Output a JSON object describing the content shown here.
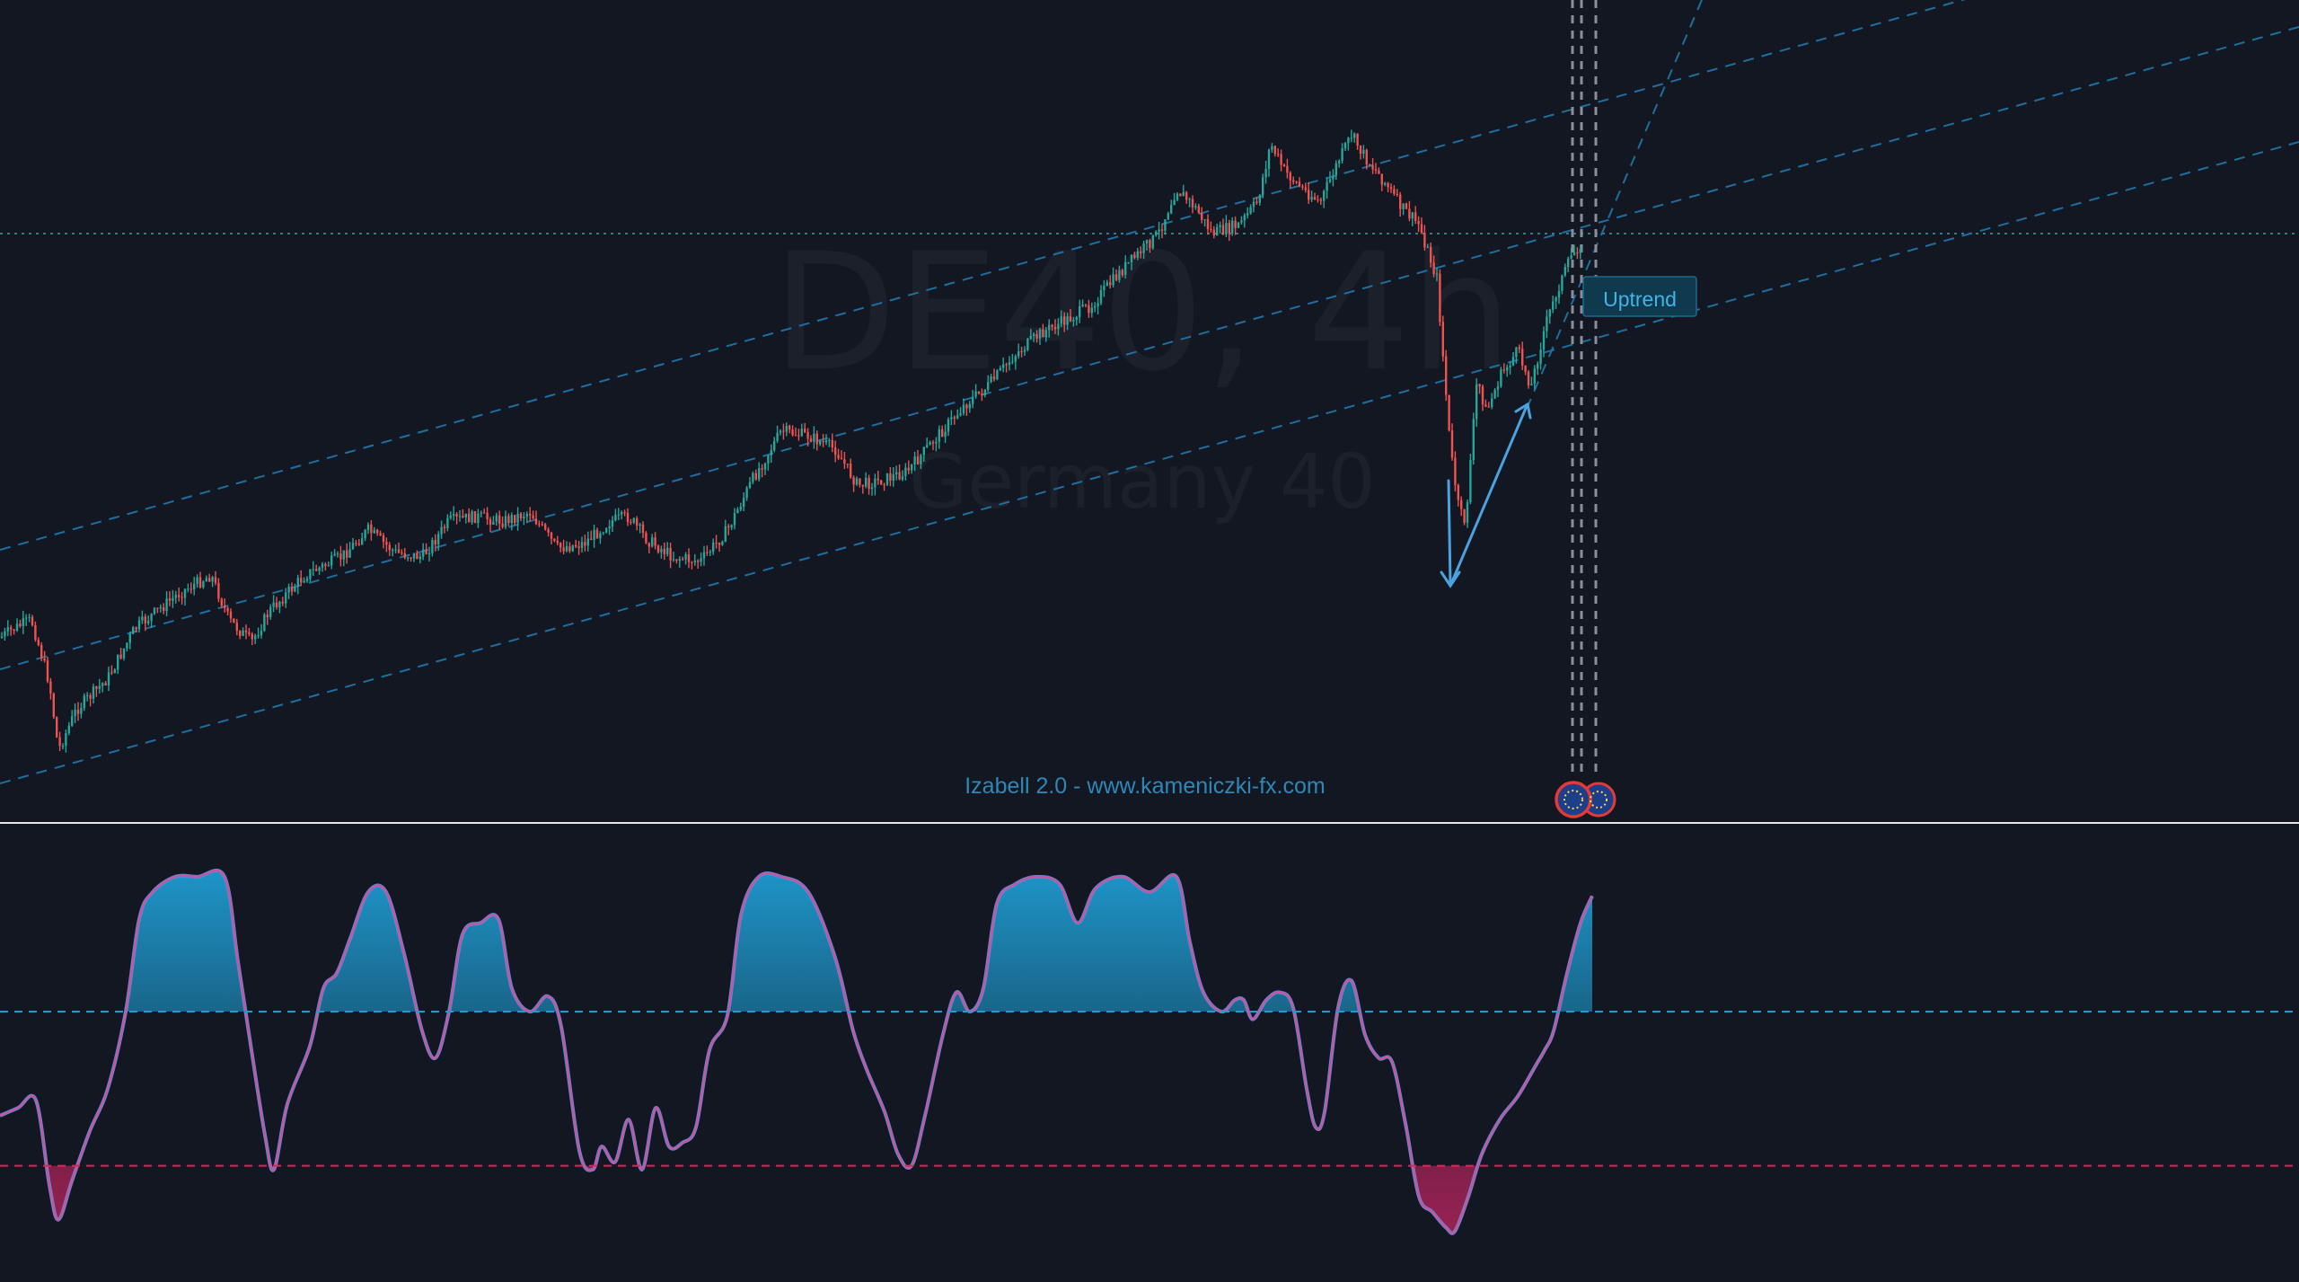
{
  "chart_data": [
    {
      "type": "candlestick",
      "watermark": {
        "symbol": "DE40, 4h",
        "description": "Germany 40"
      },
      "footer_text": "Izabell 2.0 - www.kameniczki-fx.com",
      "annotations": [
        {
          "kind": "callout",
          "text": "Uptrend"
        }
      ],
      "price_path_anchors": [
        [
          0,
          710
        ],
        [
          15,
          700
        ],
        [
          35,
          690
        ],
        [
          55,
          760
        ],
        [
          65,
          835
        ],
        [
          85,
          790
        ],
        [
          120,
          755
        ],
        [
          150,
          700
        ],
        [
          200,
          660
        ],
        [
          235,
          640
        ],
        [
          255,
          690
        ],
        [
          280,
          715
        ],
        [
          300,
          680
        ],
        [
          340,
          640
        ],
        [
          380,
          620
        ],
        [
          410,
          590
        ],
        [
          440,
          615
        ],
        [
          470,
          620
        ],
        [
          500,
          580
        ],
        [
          530,
          575
        ],
        [
          560,
          580
        ],
        [
          590,
          570
        ],
        [
          620,
          610
        ],
        [
          650,
          605
        ],
        [
          680,
          580
        ],
        [
          700,
          575
        ],
        [
          720,
          600
        ],
        [
          750,
          620
        ],
        [
          780,
          625
        ],
        [
          810,
          590
        ],
        [
          840,
          530
        ],
        [
          870,
          480
        ],
        [
          900,
          485
        ],
        [
          930,
          500
        ],
        [
          955,
          540
        ],
        [
          980,
          535
        ],
        [
          1010,
          525
        ],
        [
          1040,
          490
        ],
        [
          1075,
          450
        ],
        [
          1100,
          430
        ],
        [
          1130,
          395
        ],
        [
          1160,
          370
        ],
        [
          1190,
          355
        ],
        [
          1215,
          340
        ],
        [
          1250,
          300
        ],
        [
          1290,
          260
        ],
        [
          1310,
          210
        ],
        [
          1330,
          230
        ],
        [
          1350,
          260
        ],
        [
          1380,
          250
        ],
        [
          1400,
          225
        ],
        [
          1415,
          160
        ],
        [
          1430,
          190
        ],
        [
          1450,
          210
        ],
        [
          1470,
          225
        ],
        [
          1490,
          180
        ],
        [
          1505,
          150
        ],
        [
          1520,
          175
        ],
        [
          1540,
          200
        ],
        [
          1560,
          230
        ],
        [
          1580,
          250
        ],
        [
          1600,
          310
        ],
        [
          1615,
          500
        ],
        [
          1625,
          570
        ],
        [
          1632,
          580
        ],
        [
          1645,
          420
        ],
        [
          1655,
          460
        ],
        [
          1670,
          420
        ],
        [
          1690,
          390
        ],
        [
          1705,
          430
        ],
        [
          1720,
          365
        ],
        [
          1735,
          320
        ],
        [
          1750,
          285
        ],
        [
          1760,
          270
        ]
      ],
      "colors": {
        "up": "#26a69a",
        "down": "#ef5350",
        "channel": "#1e88c8",
        "arrow": "#4aa3e0",
        "background": "#131722"
      }
    },
    {
      "type": "area",
      "name": "Izabell 2.0 oscillator",
      "upper_level": 62,
      "lower_level": 22,
      "ylim": [
        0,
        100
      ],
      "points": [
        [
          0,
          35
        ],
        [
          20,
          37
        ],
        [
          40,
          39
        ],
        [
          55,
          17
        ],
        [
          65,
          8
        ],
        [
          80,
          18
        ],
        [
          100,
          31
        ],
        [
          120,
          42
        ],
        [
          140,
          62
        ],
        [
          155,
          86
        ],
        [
          170,
          93
        ],
        [
          195,
          97
        ],
        [
          220,
          97
        ],
        [
          250,
          97
        ],
        [
          265,
          75
        ],
        [
          280,
          52
        ],
        [
          295,
          30
        ],
        [
          305,
          21
        ],
        [
          320,
          38
        ],
        [
          345,
          53
        ],
        [
          360,
          68
        ],
        [
          375,
          72
        ],
        [
          390,
          81
        ],
        [
          410,
          93
        ],
        [
          430,
          93
        ],
        [
          450,
          77
        ],
        [
          470,
          57
        ],
        [
          485,
          50
        ],
        [
          500,
          62
        ],
        [
          515,
          82
        ],
        [
          535,
          85
        ],
        [
          555,
          86
        ],
        [
          570,
          68
        ],
        [
          590,
          62
        ],
        [
          610,
          66
        ],
        [
          625,
          58
        ],
        [
          645,
          26
        ],
        [
          660,
          21
        ],
        [
          670,
          27
        ],
        [
          685,
          23
        ],
        [
          700,
          34
        ],
        [
          715,
          21
        ],
        [
          730,
          37
        ],
        [
          745,
          27
        ],
        [
          760,
          28
        ],
        [
          775,
          32
        ],
        [
          790,
          52
        ],
        [
          810,
          61
        ],
        [
          825,
          87
        ],
        [
          845,
          97
        ],
        [
          870,
          97
        ],
        [
          900,
          93
        ],
        [
          930,
          76
        ],
        [
          950,
          57
        ],
        [
          965,
          47
        ],
        [
          985,
          36
        ],
        [
          1000,
          25
        ],
        [
          1015,
          22
        ],
        [
          1030,
          35
        ],
        [
          1050,
          56
        ],
        [
          1065,
          67
        ],
        [
          1080,
          62
        ],
        [
          1095,
          68
        ],
        [
          1110,
          90
        ],
        [
          1130,
          95
        ],
        [
          1155,
          97
        ],
        [
          1180,
          95
        ],
        [
          1200,
          85
        ],
        [
          1220,
          94
        ],
        [
          1250,
          97
        ],
        [
          1280,
          93
        ],
        [
          1310,
          97
        ],
        [
          1325,
          80
        ],
        [
          1340,
          67
        ],
        [
          1360,
          62
        ],
        [
          1375,
          65
        ],
        [
          1385,
          65
        ],
        [
          1395,
          60
        ],
        [
          1410,
          65
        ],
        [
          1425,
          67
        ],
        [
          1440,
          63
        ],
        [
          1455,
          42
        ],
        [
          1465,
          32
        ],
        [
          1475,
          36
        ],
        [
          1490,
          63
        ],
        [
          1505,
          70
        ],
        [
          1520,
          56
        ],
        [
          1535,
          50
        ],
        [
          1550,
          49
        ],
        [
          1565,
          33
        ],
        [
          1580,
          14
        ],
        [
          1595,
          10
        ],
        [
          1610,
          6
        ],
        [
          1620,
          5
        ],
        [
          1635,
          14
        ],
        [
          1650,
          25
        ],
        [
          1670,
          34
        ],
        [
          1690,
          40
        ],
        [
          1710,
          48
        ],
        [
          1720,
          52
        ],
        [
          1730,
          57
        ],
        [
          1745,
          72
        ],
        [
          1760,
          85
        ],
        [
          1773,
          92
        ]
      ],
      "colors": {
        "line": "#c7559a",
        "upper_fill": "#1e9bd0",
        "lower_fill": "#b0245a",
        "upper_line": "#1e9bd0",
        "lower_line": "#e0245a"
      }
    }
  ]
}
